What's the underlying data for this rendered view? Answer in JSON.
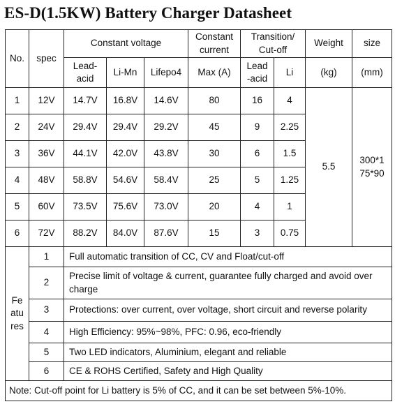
{
  "title": "ES-D(1.5KW) Battery Charger Datasheet",
  "header": {
    "no": "No.",
    "spec": "spec",
    "constant_voltage": "Constant voltage",
    "constant_current_line1": "Constant",
    "constant_current_line2": "current",
    "transition_line1": "Transition/",
    "transition_line2": "Cut-off",
    "weight": "Weight",
    "size": "size",
    "lead_acid_line1": "Lead-",
    "lead_acid_line2": "acid",
    "li_mn": "Li-Mn",
    "lifepo4": "Lifepo4",
    "max_a": "Max (A)",
    "trans_lead_line1": "Lead",
    "trans_lead_line2": "-acid",
    "li": "Li",
    "kg": "(kg)",
    "mm": "(mm)"
  },
  "rows": [
    {
      "no": "1",
      "spec": "12V",
      "lead_acid": "14.7V",
      "li_mn": "16.8V",
      "lifepo4": "14.6V",
      "max_a": "80",
      "trans_lead": "16",
      "trans_li": "4"
    },
    {
      "no": "2",
      "spec": "24V",
      "lead_acid": "29.4V",
      "li_mn": "29.4V",
      "lifepo4": "29.2V",
      "max_a": "45",
      "trans_lead": "9",
      "trans_li": "2.25"
    },
    {
      "no": "3",
      "spec": "36V",
      "lead_acid": "44.1V",
      "li_mn": "42.0V",
      "lifepo4": "43.8V",
      "max_a": "30",
      "trans_lead": "6",
      "trans_li": "1.5"
    },
    {
      "no": "4",
      "spec": "48V",
      "lead_acid": "58.8V",
      "li_mn": "54.6V",
      "lifepo4": "58.4V",
      "max_a": "25",
      "trans_lead": "5",
      "trans_li": "1.25"
    },
    {
      "no": "5",
      "spec": "60V",
      "lead_acid": "73.5V",
      "li_mn": "75.6V",
      "lifepo4": "73.0V",
      "max_a": "20",
      "trans_lead": "4",
      "trans_li": "1"
    },
    {
      "no": "6",
      "spec": "72V",
      "lead_acid": "88.2V",
      "li_mn": "84.0V",
      "lifepo4": "87.6V",
      "max_a": "15",
      "trans_lead": "3",
      "trans_li": "0.75"
    }
  ],
  "weight_value": "5.5",
  "size_value_line1": "300*1",
  "size_value_line2": "75*90",
  "features_label": {
    "line1": "Fe",
    "line2": "atu",
    "line3": "res"
  },
  "features": [
    {
      "no": "1",
      "text": "Full automatic transition of CC, CV and Float/cut-off"
    },
    {
      "no": "2",
      "text": "Precise limit of voltage & current, guarantee fully charged and avoid over charge"
    },
    {
      "no": "3",
      "text": "Protections: over current, over voltage, short circuit and reverse polarity"
    },
    {
      "no": "4",
      "text": "High Efficiency: 95%~98%, PFC: 0.96, eco-friendly"
    },
    {
      "no": "5",
      "text": "Two LED indicators, Aluminium, elegant and reliable"
    },
    {
      "no": "6",
      "text": "CE & ROHS Certified, Safety and High Quality"
    }
  ],
  "note": "Note: Cut-off point for Li battery is 5% of CC, and it can be set between 5%-10%."
}
